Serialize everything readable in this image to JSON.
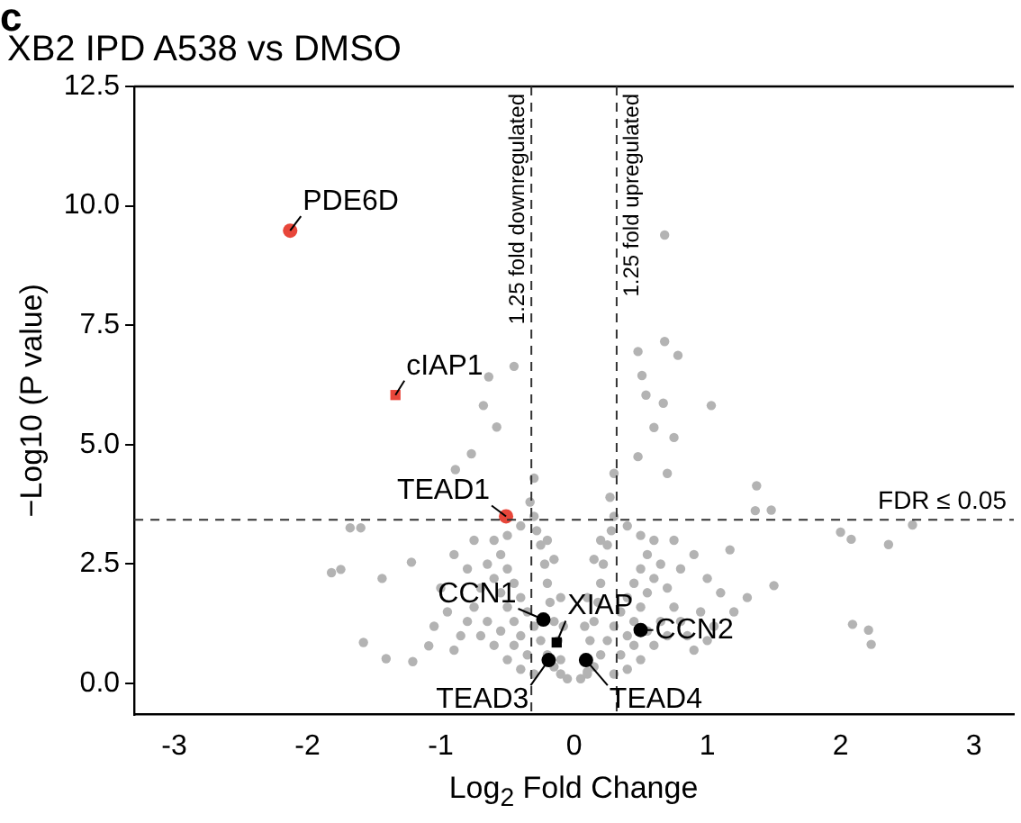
{
  "chart_data": {
    "type": "scatter",
    "title": "XB2 IPD A538 vs DMSO",
    "xlabel": "Log$_{2}$ Fold Change",
    "ylabel": "−Log10 (P value)",
    "xlim": [
      -3.3,
      3.3
    ],
    "xticks": [
      -3,
      -2,
      -1,
      0,
      1,
      2,
      3
    ],
    "ylim": [
      -0.65,
      12.5
    ],
    "yticks": [
      {
        "value": 0,
        "label": "0.0"
      },
      {
        "value": 2.5,
        "label": "2.5"
      },
      {
        "value": 5,
        "label": "5.0"
      },
      {
        "value": 7.5,
        "label": "7.5"
      },
      {
        "value": 10,
        "label": "10.0"
      },
      {
        "value": 12.5,
        "label": "12.5"
      }
    ],
    "grid": false,
    "legend": false,
    "series": [
      {
        "color": "#b3b3b3",
        "marker": "circle",
        "x": [
          0.68,
          -0.45,
          0.68,
          0.78,
          0.48,
          0.51,
          0.54,
          0.67,
          1.03,
          0.6,
          0.75,
          0.7,
          0.48,
          1.37,
          1.36,
          1.48,
          2.0,
          2.08,
          2.36,
          2.54,
          2.09,
          2.21,
          2.23,
          1.5,
          1.17,
          -0.64,
          -0.68,
          -0.58,
          -0.77,
          -0.89,
          -1.68,
          -1.6,
          -1.82,
          -1.75,
          -1.58,
          -1.41,
          -1.44,
          -1.22,
          -1.09,
          -1.21,
          -0.05,
          -0.1,
          -0.15,
          -0.2,
          -0.25,
          -0.3,
          -0.35,
          -0.4,
          -0.45,
          -0.5,
          -0.55,
          -0.6,
          -0.1,
          -0.12,
          -0.15,
          -0.18,
          -0.2,
          -0.22,
          -0.25,
          -0.28,
          -0.3,
          -0.33,
          -0.3,
          -0.35,
          -0.4,
          -0.45,
          -0.5,
          -0.55,
          -0.6,
          -0.65,
          -0.7,
          -0.75,
          -0.8,
          -0.85,
          -0.9,
          -0.7,
          -0.6,
          -0.5,
          -0.4,
          -0.3,
          -0.65,
          -0.55,
          -0.45,
          -0.95,
          -1.0,
          -1.05,
          -0.8,
          -0.9,
          -0.75,
          -0.4,
          -0.5,
          -0.2,
          -0.15,
          -0.1,
          -0.08,
          0.05,
          0.1,
          0.15,
          0.2,
          0.25,
          0.3,
          0.35,
          0.4,
          0.45,
          0.5,
          0.55,
          0.6,
          0.1,
          0.12,
          0.15,
          0.18,
          0.2,
          0.22,
          0.25,
          0.28,
          0.3,
          0.27,
          0.3,
          0.35,
          0.4,
          0.45,
          0.5,
          0.55,
          0.6,
          0.65,
          0.7,
          0.75,
          0.8,
          0.85,
          0.9,
          0.7,
          0.6,
          0.5,
          0.4,
          0.3,
          0.65,
          0.55,
          0.45,
          0.95,
          1.0,
          1.05,
          0.8,
          0.9,
          0.75,
          0.4,
          0.5,
          1.1,
          1.2,
          1.3,
          1.0,
          0.2,
          0.15,
          0.1,
          0.08
        ],
        "values": [
          9.39,
          6.64,
          7.16,
          6.87,
          6.95,
          6.45,
          6.04,
          5.87,
          5.82,
          5.36,
          5.15,
          4.4,
          4.75,
          4.14,
          3.62,
          3.63,
          3.17,
          3.02,
          2.91,
          3.32,
          1.24,
          1.12,
          0.82,
          2.05,
          2.8,
          6.42,
          5.82,
          5.37,
          4.81,
          4.48,
          3.26,
          3.26,
          2.32,
          2.39,
          0.86,
          0.52,
          2.2,
          2.54,
          0.79,
          0.46,
          0.1,
          0.2,
          0.35,
          0.6,
          0.9,
          1.2,
          1.5,
          1.8,
          2.1,
          2.4,
          2.7,
          3.0,
          0.5,
          0.9,
          1.3,
          1.7,
          2.1,
          2.5,
          2.9,
          3.2,
          3.5,
          3.8,
          4.3,
          0.6,
          1.0,
          1.3,
          1.6,
          1.9,
          2.2,
          2.5,
          2.0,
          1.6,
          1.3,
          1.0,
          0.7,
          1.0,
          0.8,
          0.5,
          0.3,
          0.2,
          1.3,
          1.1,
          0.8,
          1.5,
          2.0,
          1.2,
          2.4,
          2.7,
          3.0,
          3.3,
          3.1,
          3.0,
          2.6,
          1.8,
          1.2,
          0.1,
          0.2,
          0.35,
          0.6,
          0.9,
          1.2,
          1.5,
          1.8,
          2.1,
          2.4,
          2.7,
          3.0,
          0.25,
          0.9,
          1.3,
          1.7,
          2.1,
          2.5,
          2.9,
          3.2,
          3.5,
          3.9,
          4.4,
          0.6,
          1.0,
          1.3,
          1.6,
          1.9,
          2.2,
          2.5,
          2.0,
          1.6,
          1.3,
          1.0,
          0.7,
          1.0,
          0.8,
          0.5,
          0.3,
          0.2,
          1.3,
          1.1,
          0.8,
          1.5,
          2.2,
          1.2,
          2.4,
          2.7,
          3.0,
          3.3,
          3.1,
          1.9,
          1.5,
          1.8,
          0.9,
          3.0,
          2.6,
          1.8,
          1.2
        ]
      },
      {
        "color": "#e8463a",
        "marker": "circle",
        "x": [
          -2.13,
          -0.51
        ],
        "values": [
          9.48,
          3.5
        ]
      },
      {
        "color": "#e8463a",
        "marker": "square",
        "x": [
          -1.34
        ],
        "values": [
          6.04
        ]
      },
      {
        "color": "#000000",
        "marker": "circle",
        "x": [
          -0.23,
          -0.19,
          0.09,
          0.5
        ],
        "values": [
          1.34,
          0.49,
          0.49,
          1.12
        ]
      },
      {
        "color": "#000000",
        "marker": "square",
        "x": [
          -0.13
        ],
        "values": [
          0.86
        ]
      }
    ],
    "ref_lines": [
      {
        "axis": "x",
        "value": -0.32,
        "label": "1.25 fold downregulated",
        "line_style": "dashed"
      },
      {
        "axis": "x",
        "value": 0.32,
        "label": "1.25 fold upregulated",
        "line_style": "dashed"
      },
      {
        "axis": "y",
        "value": 3.43,
        "label": "FDR ≤ 0.05",
        "line_style": "dashed"
      }
    ],
    "annotations": [
      "c",
      {
        "text": "PDE6D",
        "x": -2.13,
        "y": 9.48
      },
      {
        "text": "cIAP1",
        "x": -1.34,
        "y": 6.04
      },
      {
        "text": "TEAD1",
        "x": -0.51,
        "y": 3.5
      },
      {
        "text": "CCN1",
        "x": -0.23,
        "y": 1.34
      },
      {
        "text": "XIAP",
        "x": -0.13,
        "y": 0.86
      },
      {
        "text": "TEAD3",
        "x": -0.19,
        "y": 0.49
      },
      {
        "text": "TEAD4",
        "x": 0.09,
        "y": 0.49
      },
      {
        "text": "CCN2",
        "x": 0.5,
        "y": 1.12
      }
    ]
  }
}
